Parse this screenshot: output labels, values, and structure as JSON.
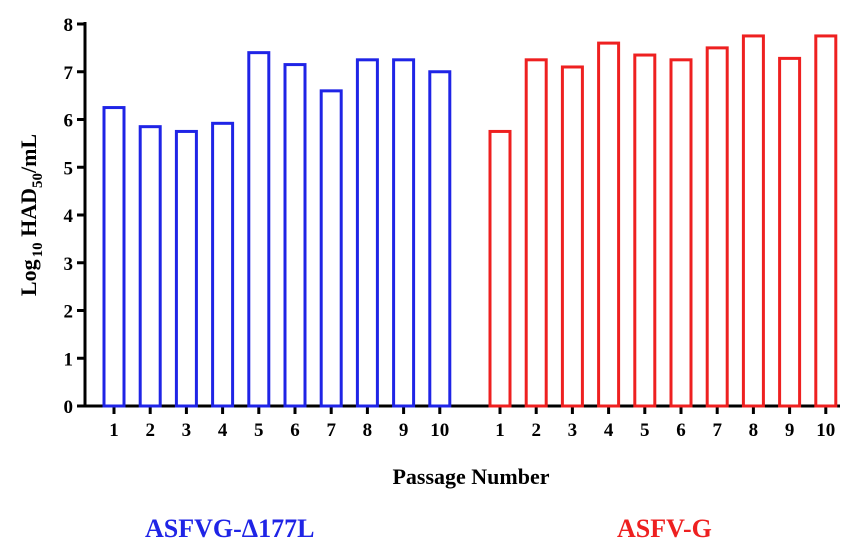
{
  "chart_data": {
    "type": "bar",
    "ylabel": {
      "prefix": "Log",
      "sub1": "10",
      "middle": " HAD",
      "sub2": "50",
      "suffix": "/mL"
    },
    "xlabel": "Passage Number",
    "ylim": [
      0,
      8
    ],
    "yticks": [
      "0",
      "1",
      "2",
      "3",
      "4",
      "5",
      "6",
      "7",
      "8"
    ],
    "grid": false,
    "categories": [
      "1",
      "2",
      "3",
      "4",
      "5",
      "6",
      "7",
      "8",
      "9",
      "10"
    ],
    "series": [
      {
        "name": "ASFVG-Δ177L",
        "color": "#1f24e6",
        "values": [
          6.25,
          5.85,
          5.75,
          5.92,
          7.4,
          7.15,
          6.6,
          7.25,
          7.25,
          7.0
        ]
      },
      {
        "name": "ASFV-G",
        "color": "#ee2020",
        "values": [
          5.75,
          7.25,
          7.1,
          7.6,
          7.35,
          7.25,
          7.5,
          7.75,
          7.28,
          7.75
        ]
      }
    ]
  }
}
